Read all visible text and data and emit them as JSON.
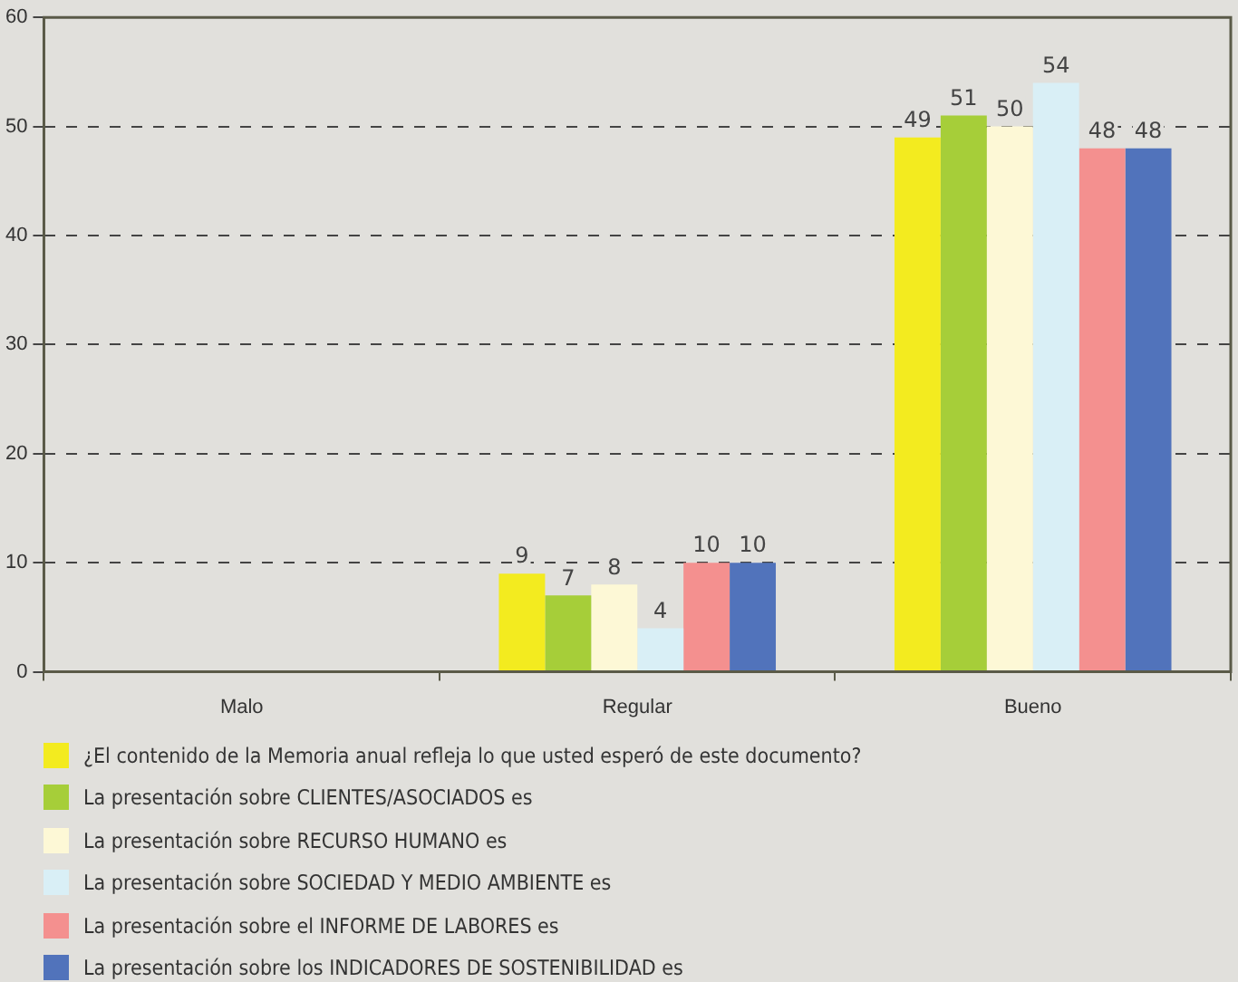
{
  "chart_data": {
    "type": "bar",
    "categories": [
      "Malo",
      "Regular",
      "Bueno"
    ],
    "series": [
      {
        "name": "¿El contenido de la Memoria anual refleja lo que usted esperó de este documento?",
        "color": "#f3eb1f",
        "values": [
          null,
          9,
          49
        ]
      },
      {
        "name": "La presentación sobre CLIENTES/ASOCIADOS es",
        "color": "#a6ce39",
        "values": [
          null,
          7,
          51
        ]
      },
      {
        "name": "La presentación sobre RECURSO HUMANO es",
        "color": "#fdf8d6",
        "values": [
          null,
          8,
          50
        ]
      },
      {
        "name": "La presentación sobre SOCIEDAD Y MEDIO AMBIENTE es",
        "color": "#d9eff6",
        "values": [
          null,
          4,
          54
        ]
      },
      {
        "name": "La presentación sobre el INFORME DE LABORES es",
        "color": "#f4908f",
        "values": [
          null,
          10,
          48
        ]
      },
      {
        "name": "La presentación sobre los INDICADORES DE SOSTENIBILIDAD es",
        "color": "#5173bb",
        "values": [
          null,
          10,
          48
        ]
      }
    ],
    "ylim": [
      0,
      60
    ],
    "yticks": [
      0,
      10,
      20,
      30,
      40,
      50,
      60
    ],
    "grid": "y",
    "legend": "bottom",
    "data_labels": true
  }
}
